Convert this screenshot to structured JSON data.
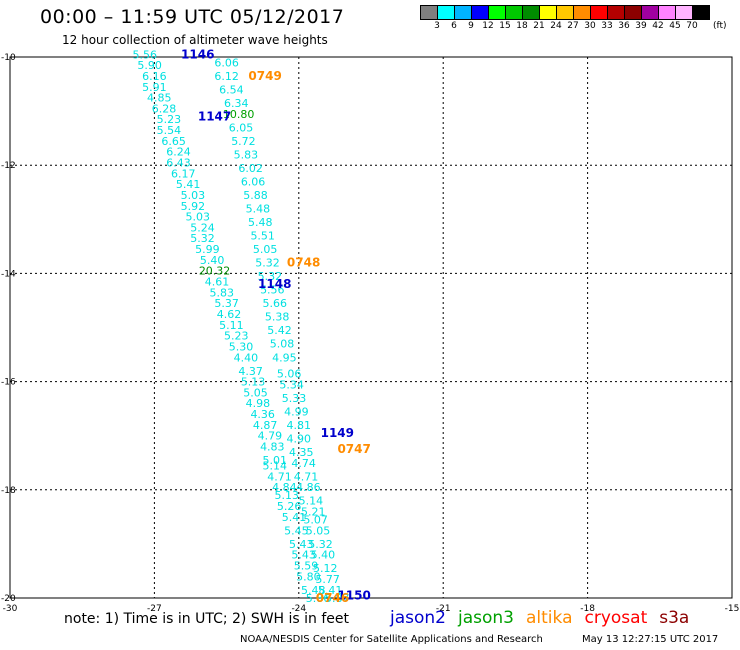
{
  "header": {
    "title": "00:00 – 11:59 UTC 05/12/2017",
    "subtitle": "12 hour collection of altimeter wave heights"
  },
  "colorbar": {
    "colors": [
      "#7f7f7f",
      "#00ffff",
      "#00b4ff",
      "#0000ff",
      "#00ff00",
      "#00c800",
      "#008c00",
      "#ffff00",
      "#ffc800",
      "#ff8c00",
      "#ff0000",
      "#b40000",
      "#8c0000",
      "#a000a0",
      "#ff82ff",
      "#ffb4ff",
      "#000000"
    ],
    "labels": [
      "3",
      "6",
      "9",
      "12",
      "15",
      "18",
      "21",
      "24",
      "27",
      "30",
      "33",
      "36",
      "39",
      "42",
      "45",
      "70"
    ],
    "unit": "(ft)"
  },
  "map": {
    "lon_ticks": [
      "-30",
      "-27",
      "-24",
      "-21",
      "-18",
      "-15"
    ],
    "lat_ticks": [
      "-10",
      "-12",
      "-14",
      "-16",
      "-18",
      "-20"
    ],
    "swh_labels": [
      {
        "lon": -27.2,
        "lat": -9.95,
        "text": "5.56",
        "color": "#00e0e0"
      },
      {
        "lon": -25.5,
        "lat": -10.1,
        "text": "6.06",
        "color": "#00e0e0"
      },
      {
        "lon": -27.1,
        "lat": -10.15,
        "text": "5.90",
        "color": "#00e0e0"
      },
      {
        "lon": -25.5,
        "lat": -10.35,
        "text": "6.12",
        "color": "#00e0e0"
      },
      {
        "lon": -27.0,
        "lat": -10.35,
        "text": "6.16",
        "color": "#00e0e0"
      },
      {
        "lon": -27.0,
        "lat": -10.55,
        "text": "5.91",
        "color": "#00e0e0"
      },
      {
        "lon": -25.4,
        "lat": -10.6,
        "text": "6.54",
        "color": "#00e0e0"
      },
      {
        "lon": -26.9,
        "lat": -10.75,
        "text": "4.85",
        "color": "#00e0e0"
      },
      {
        "lon": -25.3,
        "lat": -10.85,
        "text": "6.34",
        "color": "#00e0e0"
      },
      {
        "lon": -26.8,
        "lat": -10.95,
        "text": "6.28",
        "color": "#00e0e0"
      },
      {
        "lon": -25.25,
        "lat": -11.05,
        "text": "10.80",
        "color": "#00a000"
      },
      {
        "lon": -26.7,
        "lat": -11.15,
        "text": "5.23",
        "color": "#00e0e0"
      },
      {
        "lon": -25.2,
        "lat": -11.3,
        "text": "6.05",
        "color": "#00e0e0"
      },
      {
        "lon": -26.7,
        "lat": -11.35,
        "text": "5.54",
        "color": "#00e0e0"
      },
      {
        "lon": -26.6,
        "lat": -11.55,
        "text": "6.65",
        "color": "#00e0e0"
      },
      {
        "lon": -25.15,
        "lat": -11.55,
        "text": "5.72",
        "color": "#00e0e0"
      },
      {
        "lon": -26.5,
        "lat": -11.75,
        "text": "6.24",
        "color": "#00e0e0"
      },
      {
        "lon": -25.1,
        "lat": -11.8,
        "text": "5.83",
        "color": "#00e0e0"
      },
      {
        "lon": -26.5,
        "lat": -11.95,
        "text": "6.43",
        "color": "#00e0e0"
      },
      {
        "lon": -25.0,
        "lat": -12.05,
        "text": "6.02",
        "color": "#00e0e0"
      },
      {
        "lon": -26.4,
        "lat": -12.15,
        "text": "6.17",
        "color": "#00e0e0"
      },
      {
        "lon": -24.95,
        "lat": -12.3,
        "text": "6.06",
        "color": "#00e0e0"
      },
      {
        "lon": -26.3,
        "lat": -12.35,
        "text": "5.41",
        "color": "#00e0e0"
      },
      {
        "lon": -26.2,
        "lat": -12.55,
        "text": "5.03",
        "color": "#00e0e0"
      },
      {
        "lon": -24.9,
        "lat": -12.55,
        "text": "5.88",
        "color": "#00e0e0"
      },
      {
        "lon": -26.2,
        "lat": -12.75,
        "text": "5.92",
        "color": "#00e0e0"
      },
      {
        "lon": -24.85,
        "lat": -12.8,
        "text": "5.48",
        "color": "#00e0e0"
      },
      {
        "lon": -26.1,
        "lat": -12.95,
        "text": "5.03",
        "color": "#00e0e0"
      },
      {
        "lon": -24.8,
        "lat": -13.05,
        "text": "5.48",
        "color": "#00e0e0"
      },
      {
        "lon": -26.0,
        "lat": -13.15,
        "text": "5.24",
        "color": "#00e0e0"
      },
      {
        "lon": -24.75,
        "lat": -13.3,
        "text": "5.51",
        "color": "#00e0e0"
      },
      {
        "lon": -26.0,
        "lat": -13.35,
        "text": "5.32",
        "color": "#00e0e0"
      },
      {
        "lon": -25.9,
        "lat": -13.55,
        "text": "5.99",
        "color": "#00e0e0"
      },
      {
        "lon": -24.7,
        "lat": -13.55,
        "text": "5.05",
        "color": "#00e0e0"
      },
      {
        "lon": -25.8,
        "lat": -13.75,
        "text": "5.40",
        "color": "#00e0e0"
      },
      {
        "lon": -24.65,
        "lat": -13.8,
        "text": "5.32",
        "color": "#00e0e0"
      },
      {
        "lon": -25.75,
        "lat": -13.95,
        "text": "20.32",
        "color": "#008c00"
      },
      {
        "lon": -24.6,
        "lat": -14.05,
        "text": "5.32",
        "color": "#00e0e0"
      },
      {
        "lon": -25.7,
        "lat": -14.15,
        "text": "4.61",
        "color": "#00e0e0"
      },
      {
        "lon": -24.55,
        "lat": -14.3,
        "text": "5.56",
        "color": "#00e0e0"
      },
      {
        "lon": -25.6,
        "lat": -14.35,
        "text": "5.83",
        "color": "#00e0e0"
      },
      {
        "lon": -25.5,
        "lat": -14.55,
        "text": "5.37",
        "color": "#00e0e0"
      },
      {
        "lon": -24.5,
        "lat": -14.55,
        "text": "5.66",
        "color": "#00e0e0"
      },
      {
        "lon": -25.45,
        "lat": -14.75,
        "text": "4.62",
        "color": "#00e0e0"
      },
      {
        "lon": -24.45,
        "lat": -14.8,
        "text": "5.38",
        "color": "#00e0e0"
      },
      {
        "lon": -25.4,
        "lat": -14.95,
        "text": "5.11",
        "color": "#00e0e0"
      },
      {
        "lon": -24.4,
        "lat": -15.05,
        "text": "5.42",
        "color": "#00e0e0"
      },
      {
        "lon": -25.3,
        "lat": -15.15,
        "text": "5.23",
        "color": "#00e0e0"
      },
      {
        "lon": -24.35,
        "lat": -15.3,
        "text": "5.08",
        "color": "#00e0e0"
      },
      {
        "lon": -25.2,
        "lat": -15.35,
        "text": "5.30",
        "color": "#00e0e0"
      },
      {
        "lon": -25.1,
        "lat": -15.55,
        "text": "4.40",
        "color": "#00e0e0"
      },
      {
        "lon": -24.3,
        "lat": -15.55,
        "text": "4.95",
        "color": "#00e0e0"
      },
      {
        "lon": -25.0,
        "lat": -15.8,
        "text": "4.37",
        "color": "#00e0e0"
      },
      {
        "lon": -24.2,
        "lat": -15.85,
        "text": "5.06",
        "color": "#00e0e0"
      },
      {
        "lon": -24.95,
        "lat": -16.0,
        "text": "5.13",
        "color": "#00e0e0"
      },
      {
        "lon": -24.15,
        "lat": -16.05,
        "text": "5.34",
        "color": "#00e0e0"
      },
      {
        "lon": -24.9,
        "lat": -16.2,
        "text": "5.05",
        "color": "#00e0e0"
      },
      {
        "lon": -24.1,
        "lat": -16.3,
        "text": "5.33",
        "color": "#00e0e0"
      },
      {
        "lon": -24.85,
        "lat": -16.4,
        "text": "4.98",
        "color": "#00e0e0"
      },
      {
        "lon": -24.75,
        "lat": -16.6,
        "text": "4.36",
        "color": "#00e0e0"
      },
      {
        "lon": -24.05,
        "lat": -16.55,
        "text": "4.99",
        "color": "#00e0e0"
      },
      {
        "lon": -24.7,
        "lat": -16.8,
        "text": "4.87",
        "color": "#00e0e0"
      },
      {
        "lon": -24.0,
        "lat": -16.8,
        "text": "4.81",
        "color": "#00e0e0"
      },
      {
        "lon": -24.6,
        "lat": -17.0,
        "text": "4.79",
        "color": "#00e0e0"
      },
      {
        "lon": -24.0,
        "lat": -17.05,
        "text": "4.90",
        "color": "#00e0e0"
      },
      {
        "lon": -24.55,
        "lat": -17.2,
        "text": "4.83",
        "color": "#00e0e0"
      },
      {
        "lon": -23.95,
        "lat": -17.3,
        "text": "4.35",
        "color": "#00e0e0"
      },
      {
        "lon": -24.5,
        "lat": -17.45,
        "text": "5.01",
        "color": "#00e0e0"
      },
      {
        "lon": -23.9,
        "lat": -17.5,
        "text": "4.74",
        "color": "#00e0e0"
      },
      {
        "lon": -24.5,
        "lat": -17.55,
        "text": "5.14",
        "color": "#00e0e0"
      },
      {
        "lon": -24.4,
        "lat": -17.75,
        "text": "4.71",
        "color": "#00e0e0"
      },
      {
        "lon": -23.85,
        "lat": -17.75,
        "text": "4.71",
        "color": "#00e0e0"
      },
      {
        "lon": -24.3,
        "lat": -17.95,
        "text": "4.84",
        "color": "#00e0e0"
      },
      {
        "lon": -23.8,
        "lat": -17.95,
        "text": "4.86",
        "color": "#00e0e0"
      },
      {
        "lon": -24.25,
        "lat": -18.1,
        "text": "5.13",
        "color": "#00e0e0"
      },
      {
        "lon": -23.75,
        "lat": -18.2,
        "text": "5.14",
        "color": "#00e0e0"
      },
      {
        "lon": -24.2,
        "lat": -18.3,
        "text": "5.26",
        "color": "#00e0e0"
      },
      {
        "lon": -23.7,
        "lat": -18.4,
        "text": "5.21",
        "color": "#00e0e0"
      },
      {
        "lon": -24.1,
        "lat": -18.5,
        "text": "5.41",
        "color": "#00e0e0"
      },
      {
        "lon": -23.65,
        "lat": -18.55,
        "text": "5.07",
        "color": "#00e0e0"
      },
      {
        "lon": -24.05,
        "lat": -18.75,
        "text": "5.45",
        "color": "#00e0e0"
      },
      {
        "lon": -23.6,
        "lat": -18.75,
        "text": "5.05",
        "color": "#00e0e0"
      },
      {
        "lon": -23.95,
        "lat": -19.0,
        "text": "5.43",
        "color": "#00e0e0"
      },
      {
        "lon": -23.55,
        "lat": -19.0,
        "text": "5.32",
        "color": "#00e0e0"
      },
      {
        "lon": -23.9,
        "lat": -19.2,
        "text": "5.43",
        "color": "#00e0e0"
      },
      {
        "lon": -23.5,
        "lat": -19.2,
        "text": "5.40",
        "color": "#00e0e0"
      },
      {
        "lon": -23.85,
        "lat": -19.4,
        "text": "5.59",
        "color": "#00e0e0"
      },
      {
        "lon": -23.45,
        "lat": -19.45,
        "text": "5.12",
        "color": "#00e0e0"
      },
      {
        "lon": -23.8,
        "lat": -19.6,
        "text": "5.80",
        "color": "#00e0e0"
      },
      {
        "lon": -23.4,
        "lat": -19.65,
        "text": "5.77",
        "color": "#00e0e0"
      },
      {
        "lon": -23.7,
        "lat": -19.85,
        "text": "5.48",
        "color": "#00e0e0"
      },
      {
        "lon": -23.35,
        "lat": -19.85,
        "text": "5.41",
        "color": "#00e0e0"
      },
      {
        "lon": -23.6,
        "lat": -20.0,
        "text": "5.86",
        "color": "#00e0e0"
      },
      {
        "lon": -23.2,
        "lat": -20.0,
        "text": "5.87",
        "color": "#00e0e0"
      }
    ],
    "pass_times": [
      {
        "lon": -26.1,
        "lat": -9.95,
        "text": "1146",
        "color": "#0000cc"
      },
      {
        "lon": -24.7,
        "lat": -10.35,
        "text": "0749",
        "color": "#ff8c00"
      },
      {
        "lon": -25.75,
        "lat": -11.1,
        "text": "1147",
        "color": "#0000cc"
      },
      {
        "lon": -23.9,
        "lat": -13.8,
        "text": "0748",
        "color": "#ff8c00"
      },
      {
        "lon": -24.5,
        "lat": -14.2,
        "text": "1148",
        "color": "#0000cc"
      },
      {
        "lon": -23.2,
        "lat": -16.95,
        "text": "1149",
        "color": "#0000cc"
      },
      {
        "lon": -22.85,
        "lat": -17.25,
        "text": "0747",
        "color": "#ff8c00"
      },
      {
        "lon": -22.85,
        "lat": -19.95,
        "text": "1150",
        "color": "#0000cc"
      },
      {
        "lon": -23.3,
        "lat": -20.0,
        "text": "0746",
        "color": "#ff8c00"
      }
    ]
  },
  "footer": {
    "note": "note: 1) Time is in UTC; 2) SWH is in feet",
    "legend": [
      {
        "label": "jason2",
        "color": "#0000cc"
      },
      {
        "label": "jason3",
        "color": "#00a000"
      },
      {
        "label": "altika",
        "color": "#ff8c00"
      },
      {
        "label": "cryosat",
        "color": "#ff0000"
      },
      {
        "label": "s3a",
        "color": "#8c0000"
      }
    ],
    "credit": "NOAA/NESDIS Center for Satellite Applications and Research",
    "timestamp": "May 13 12:27:15 UTC 2017"
  }
}
